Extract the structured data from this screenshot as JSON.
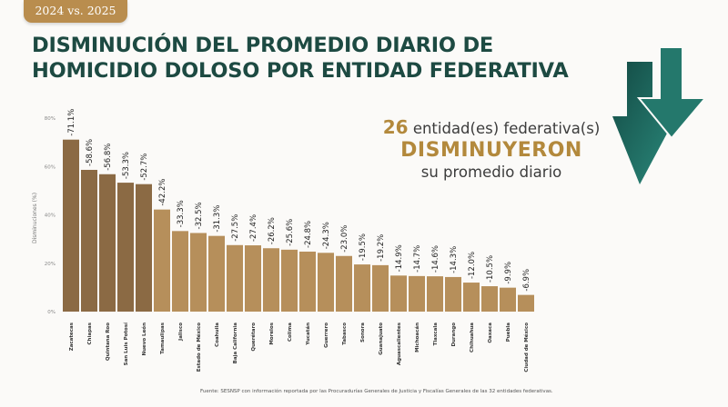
{
  "badge": "2024 vs. 2025",
  "title_line1": "DISMINUCIÓN DEL PROMEDIO DIARIO DE",
  "title_line2": "HOMICIDIO DOLOSO POR ENTIDAD FEDERATIVA",
  "callout": {
    "count": "26",
    "line1": "entidad(es) federativa(s)",
    "line2": "DISMINUYERON",
    "line3": "su promedio diario"
  },
  "source": "Fuente: SESNSP con información reportada por las Procuradurías Generales de Justicia y Fiscalías Generales de las 32 entidades federativas.",
  "colors": {
    "title": "#1d4a42",
    "accent": "#b3893c",
    "bar_dark": "#8b6a44",
    "bar_light": "#b68f5b",
    "arrow": "#1f5e55"
  },
  "chart_data": {
    "type": "bar",
    "ylabel": "Disminuciones (%)",
    "ylim": [
      0,
      80
    ],
    "yticks": [
      "0%",
      "20%",
      "40%",
      "60%",
      "80%"
    ],
    "grid": false,
    "categories": [
      "Zacatecas",
      "Chiapas",
      "Quintana Roo",
      "San Luis Potosí",
      "Nuevo León",
      "Tamaulipas",
      "Jalisco",
      "Estado de México",
      "Coahuila",
      "Baja California",
      "Querétaro",
      "Morelos",
      "Colima",
      "Yucatán",
      "Guerrero",
      "Tabasco",
      "Sonora",
      "Guanajuato",
      "Aguascalientes",
      "Michoacán",
      "Tlaxcala",
      "Durango",
      "Chihuahua",
      "Oaxaca",
      "Puebla",
      "Ciudad de México"
    ],
    "values": [
      71.1,
      58.6,
      56.8,
      53.3,
      52.7,
      42.2,
      33.3,
      32.5,
      31.3,
      27.5,
      27.4,
      26.2,
      25.6,
      24.8,
      24.3,
      23.0,
      19.5,
      19.2,
      14.9,
      14.7,
      14.6,
      14.3,
      12.0,
      10.5,
      9.9,
      6.9
    ],
    "data_labels": [
      "-71.1%",
      "-58.6%",
      "-56.8%",
      "-53.3%",
      "-52.7%",
      "-42.2%",
      "-33.3%",
      "-32.5%",
      "-31.3%",
      "-27.5%",
      "-27.4%",
      "-26.2%",
      "-25.6%",
      "-24.8%",
      "-24.3%",
      "-23.0%",
      "-19.5%",
      "-19.2%",
      "-14.9%",
      "-14.7%",
      "-14.6%",
      "-14.3%",
      "-12.0%",
      "-10.5%",
      "-9.9%",
      "-6.9%"
    ]
  }
}
